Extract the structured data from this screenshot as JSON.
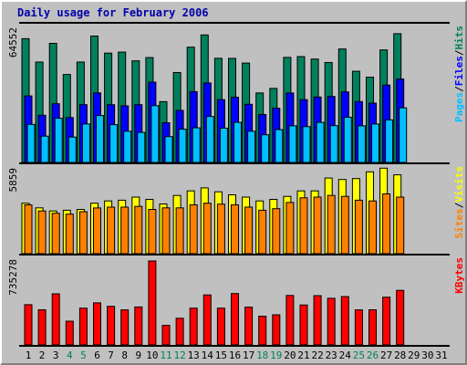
{
  "chart_data": {
    "type": "bar",
    "title": "Daily usage for February 2006",
    "days": [
      "1",
      "2",
      "3",
      "4",
      "5",
      "6",
      "7",
      "8",
      "9",
      "10",
      "11",
      "12",
      "13",
      "14",
      "15",
      "16",
      "17",
      "18",
      "19",
      "20",
      "21",
      "22",
      "23",
      "24",
      "25",
      "26",
      "27",
      "28",
      "29",
      "30",
      "31"
    ],
    "weekend_days": [
      "4",
      "5",
      "11",
      "12",
      "18",
      "19",
      "25",
      "26"
    ],
    "colors": {
      "hits": "#00805c",
      "files": "#0000ff",
      "pages": "#00c0ff",
      "visits": "#ffff00",
      "sites": "#ff8000",
      "kbytes": "#ff0000",
      "weekday_label": "#000000",
      "weekend_label": "#00805c",
      "panel_bg": "#c0c0c0",
      "title": "#0000aa",
      "separator": "#000000"
    },
    "panels": [
      {
        "name": "hits-files-pages",
        "max_label": "64552",
        "ymax": 64552,
        "legend": [
          {
            "text": "Pages",
            "color": "#00c0ff"
          },
          {
            "text": "/",
            "color": "#000000"
          },
          {
            "text": "Files",
            "color": "#0000ff"
          },
          {
            "text": "/",
            "color": "#000000"
          },
          {
            "text": "Hits",
            "color": "#00805c"
          }
        ],
        "series": [
          {
            "name": "Hits",
            "color": "#00805c",
            "offset": 0,
            "values": [
              59950,
              48650,
              57700,
              42600,
              48650,
              61230,
              52950,
              53460,
              49210,
              50810,
              29450,
              43560,
              55850,
              61750,
              50460,
              50410,
              48140,
              33640,
              35870,
              50910,
              51270,
              50100,
              48430,
              54960,
              44150,
              41290,
              54510,
              62380
            ]
          },
          {
            "name": "Files",
            "color": "#0000ff",
            "offset": 1,
            "values": [
              32210,
              22850,
              28430,
              21750,
              28000,
              33710,
              27980,
              27410,
              27980,
              38890,
              19240,
              25200,
              34310,
              38520,
              30440,
              31630,
              28160,
              23210,
              26320,
              33640,
              30440,
              31690,
              31960,
              34160,
              29490,
              28750,
              37490,
              40410
            ]
          },
          {
            "name": "Pages",
            "color": "#00c0ff",
            "offset": 2,
            "values": [
              18420,
              12720,
              21380,
              12310,
              18630,
              22720,
              18320,
              15110,
              14550,
              27500,
              12520,
              16090,
              16750,
              22300,
              16570,
              19420,
              15110,
              13390,
              15900,
              17750,
              17340,
              19420,
              17840,
              21880,
              17750,
              18630,
              20620,
              26420
            ]
          }
        ]
      },
      {
        "name": "visits-sites",
        "max_label": "5859",
        "ymax": 5859,
        "legend": [
          {
            "text": "Sites",
            "color": "#ff8000"
          },
          {
            "text": "/",
            "color": "#000000"
          },
          {
            "text": "Visits",
            "color": "#ffff00"
          }
        ],
        "series": [
          {
            "name": "Visits",
            "color": "#ffff00",
            "offset": 0,
            "values": [
              3520,
              3200,
              2980,
              3030,
              3090,
              3520,
              3680,
              3730,
              3950,
              3790,
              3470,
              4060,
              4380,
              4590,
              4320,
              4110,
              3950,
              3680,
              3790,
              4000,
              4380,
              4380,
              5280,
              5180,
              5240,
              5710,
              5970,
              5500
            ]
          },
          {
            "name": "Sites",
            "color": "#ff8000",
            "offset": 1,
            "values": [
              3410,
              2980,
              2820,
              2760,
              2930,
              3190,
              3250,
              3250,
              3300,
              3090,
              3200,
              3200,
              3410,
              3520,
              3460,
              3410,
              3250,
              3030,
              3140,
              3570,
              3900,
              3950,
              4060,
              4000,
              3730,
              3680,
              4170,
              3950
            ]
          }
        ]
      },
      {
        "name": "kbytes",
        "max_label": "735278",
        "ymax": 735278,
        "legend": [
          {
            "text": "KBytes",
            "color": "#ff0000"
          }
        ],
        "series": [
          {
            "name": "KBytes",
            "color": "#ff0000",
            "offset": 0,
            "values": [
              352800,
              307900,
              447700,
              207800,
              321900,
              368100,
              337900,
              306800,
              332100,
              735300,
              170800,
              233000,
              321900,
              437800,
              321900,
              450100,
              330900,
              251800,
              263900,
              433100,
              349900,
              431400,
              408400,
              423200,
              306900,
              307700,
              418300,
              477700
            ]
          }
        ]
      }
    ]
  }
}
